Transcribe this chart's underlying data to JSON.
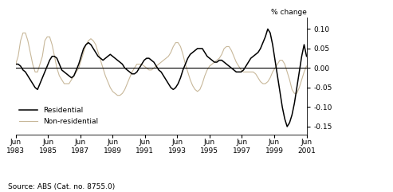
{
  "ylabel": "% change",
  "source": "Source: ABS (Cat. no. 8755.0)",
  "ylim": [
    -0.17,
    0.13
  ],
  "yticks": [
    -0.15,
    -0.1,
    -0.05,
    0.0,
    0.05,
    0.1
  ],
  "x_tick_years": [
    1983,
    1985,
    1987,
    1989,
    1991,
    1993,
    1995,
    1997,
    1999,
    2001
  ],
  "residential_color": "#000000",
  "nonresidential_color": "#c8b89a",
  "legend_labels": [
    "Residential",
    "Non-residential"
  ],
  "residential": [
    0.01,
    0.01,
    0.005,
    -0.005,
    -0.01,
    -0.02,
    -0.03,
    -0.04,
    -0.05,
    -0.055,
    -0.04,
    -0.025,
    -0.01,
    0.005,
    0.02,
    0.03,
    0.03,
    0.025,
    0.01,
    -0.005,
    -0.01,
    -0.015,
    -0.02,
    -0.025,
    -0.02,
    -0.005,
    0.01,
    0.03,
    0.05,
    0.06,
    0.065,
    0.06,
    0.05,
    0.04,
    0.03,
    0.025,
    0.02,
    0.025,
    0.03,
    0.035,
    0.03,
    0.025,
    0.02,
    0.015,
    0.01,
    0.0,
    -0.005,
    -0.01,
    -0.015,
    -0.015,
    -0.01,
    0.0,
    0.01,
    0.02,
    0.025,
    0.025,
    0.02,
    0.015,
    0.005,
    -0.005,
    -0.01,
    -0.02,
    -0.03,
    -0.04,
    -0.05,
    -0.055,
    -0.05,
    -0.04,
    -0.025,
    -0.005,
    0.01,
    0.025,
    0.035,
    0.04,
    0.045,
    0.05,
    0.05,
    0.05,
    0.04,
    0.03,
    0.025,
    0.02,
    0.015,
    0.015,
    0.02,
    0.02,
    0.015,
    0.01,
    0.005,
    0.0,
    -0.005,
    -0.01,
    -0.01,
    -0.01,
    -0.005,
    0.005,
    0.015,
    0.025,
    0.03,
    0.035,
    0.04,
    0.05,
    0.065,
    0.08,
    0.1,
    0.09,
    0.06,
    0.02,
    -0.02,
    -0.06,
    -0.1,
    -0.13,
    -0.15,
    -0.14,
    -0.12,
    -0.09,
    -0.05,
    -0.01,
    0.03,
    0.06,
    0.03
  ],
  "nonresidential": [
    0.01,
    0.03,
    0.07,
    0.09,
    0.09,
    0.07,
    0.04,
    0.01,
    -0.01,
    -0.01,
    0.01,
    0.03,
    0.07,
    0.08,
    0.08,
    0.06,
    0.03,
    0.0,
    -0.02,
    -0.03,
    -0.04,
    -0.04,
    -0.04,
    -0.03,
    -0.02,
    -0.01,
    0.0,
    0.02,
    0.04,
    0.06,
    0.07,
    0.075,
    0.07,
    0.06,
    0.04,
    0.02,
    0.0,
    -0.02,
    -0.035,
    -0.05,
    -0.06,
    -0.065,
    -0.07,
    -0.07,
    -0.065,
    -0.055,
    -0.04,
    -0.025,
    -0.01,
    0.0,
    0.01,
    0.01,
    0.01,
    0.005,
    0.0,
    -0.005,
    -0.005,
    0.0,
    0.005,
    0.01,
    0.015,
    0.02,
    0.025,
    0.03,
    0.04,
    0.055,
    0.065,
    0.065,
    0.055,
    0.035,
    0.01,
    -0.01,
    -0.03,
    -0.045,
    -0.055,
    -0.06,
    -0.055,
    -0.04,
    -0.02,
    -0.005,
    0.005,
    0.01,
    0.015,
    0.02,
    0.025,
    0.035,
    0.05,
    0.055,
    0.055,
    0.045,
    0.03,
    0.015,
    0.005,
    -0.005,
    -0.01,
    -0.01,
    -0.01,
    -0.01,
    -0.01,
    -0.015,
    -0.025,
    -0.035,
    -0.04,
    -0.04,
    -0.035,
    -0.025,
    -0.01,
    0.0,
    0.01,
    0.02,
    0.02,
    0.01,
    -0.01,
    -0.03,
    -0.055,
    -0.065,
    -0.065,
    -0.05,
    -0.03,
    -0.01,
    0.005
  ]
}
